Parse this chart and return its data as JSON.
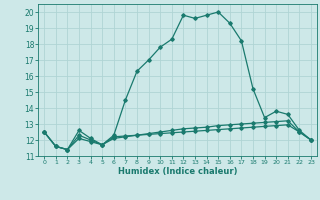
{
  "xlabel": "Humidex (Indice chaleur)",
  "background_color": "#cde8e8",
  "line_color": "#1a7a6e",
  "grid_color": "#b0d4d4",
  "xlim": [
    -0.5,
    23.5
  ],
  "ylim": [
    11,
    20.5
  ],
  "yticks": [
    11,
    12,
    13,
    14,
    15,
    16,
    17,
    18,
    19,
    20
  ],
  "xticks": [
    0,
    1,
    2,
    3,
    4,
    5,
    6,
    7,
    8,
    9,
    10,
    11,
    12,
    13,
    14,
    15,
    16,
    17,
    18,
    19,
    20,
    21,
    22,
    23
  ],
  "series": [
    {
      "x": [
        0,
        1,
        2,
        3,
        4,
        5,
        6,
        7,
        8,
        9,
        10,
        11,
        12,
        13,
        14,
        15,
        16,
        17,
        18,
        19,
        20,
        21,
        22,
        23
      ],
      "y": [
        12.5,
        11.6,
        11.4,
        12.6,
        12.1,
        11.7,
        12.3,
        14.5,
        16.3,
        17.0,
        17.8,
        18.3,
        19.8,
        19.6,
        19.8,
        20.0,
        19.3,
        18.2,
        15.2,
        13.4,
        13.8,
        13.6,
        12.6,
        12.0
      ]
    },
    {
      "x": [
        0,
        1,
        2,
        3,
        4,
        5,
        6,
        7,
        8,
        9,
        10,
        11,
        12,
        13,
        14,
        15,
        16,
        17,
        18,
        19,
        20,
        21,
        22,
        23
      ],
      "y": [
        12.5,
        11.6,
        11.4,
        12.1,
        11.9,
        11.7,
        12.1,
        12.2,
        12.3,
        12.4,
        12.5,
        12.6,
        12.7,
        12.75,
        12.8,
        12.9,
        12.95,
        13.0,
        13.05,
        13.1,
        13.15,
        13.2,
        12.5,
        12.0
      ]
    },
    {
      "x": [
        0,
        1,
        2,
        3,
        4,
        5,
        6,
        7,
        8,
        9,
        10,
        11,
        12,
        13,
        14,
        15,
        16,
        17,
        18,
        19,
        20,
        21,
        22,
        23
      ],
      "y": [
        12.5,
        11.6,
        11.4,
        12.3,
        12.0,
        11.7,
        12.2,
        12.25,
        12.3,
        12.35,
        12.4,
        12.45,
        12.5,
        12.55,
        12.6,
        12.65,
        12.7,
        12.75,
        12.8,
        12.85,
        12.9,
        12.95,
        12.5,
        12.0
      ]
    }
  ]
}
